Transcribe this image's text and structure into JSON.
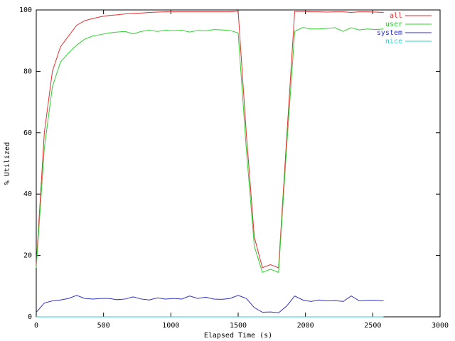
{
  "chart_data": {
    "type": "line",
    "xlabel": "Elapsed Time (s)",
    "ylabel": "% Utilized",
    "x": [
      0,
      60,
      120,
      180,
      240,
      300,
      360,
      420,
      480,
      540,
      600,
      660,
      720,
      780,
      840,
      900,
      960,
      1020,
      1080,
      1140,
      1200,
      1260,
      1320,
      1380,
      1440,
      1500,
      1560,
      1620,
      1680,
      1740,
      1800,
      1860,
      1920,
      1980,
      2040,
      2100,
      2160,
      2220,
      2280,
      2340,
      2400,
      2460,
      2520,
      2580
    ],
    "series": [
      {
        "name": "all",
        "color": "#e03030",
        "values": [
          17,
          60,
          80,
          88,
          91.5,
          95,
          96.5,
          97.2,
          97.8,
          98.2,
          98.4,
          98.7,
          98.9,
          99,
          99.2,
          99.3,
          99.4,
          99.4,
          99.4,
          99.4,
          99.4,
          99.4,
          99.4,
          99.4,
          99.4,
          99.6,
          60,
          26,
          16,
          17,
          16,
          58,
          99.5,
          99.5,
          99.4,
          99.4,
          99.3,
          99.4,
          99.4,
          99.2,
          99.4,
          99.4,
          99.3,
          99.2
        ]
      },
      {
        "name": "user",
        "color": "#30d030",
        "values": [
          16,
          55,
          75,
          83,
          86,
          88.5,
          90.5,
          91.5,
          92,
          92.5,
          92.8,
          93,
          92.2,
          93,
          93.4,
          93,
          93.4,
          93.2,
          93.4,
          92.8,
          93.3,
          93.2,
          93.6,
          93.5,
          93.3,
          92.5,
          55,
          23,
          14.5,
          15.5,
          14.5,
          55,
          93,
          94.3,
          93.8,
          93.8,
          94,
          94.2,
          93,
          94.2,
          93.5,
          93.8,
          93.6,
          93.8
        ]
      },
      {
        "name": "system",
        "color": "#3030c0",
        "values": [
          1.5,
          4.5,
          5.2,
          5.5,
          6,
          7,
          6,
          5.8,
          6,
          6,
          5.6,
          5.8,
          6.5,
          5.8,
          5.5,
          6.2,
          5.8,
          6,
          5.8,
          6.8,
          6,
          6.4,
          5.8,
          5.7,
          6,
          7,
          6,
          3,
          1.5,
          1.6,
          1.3,
          3.5,
          6.8,
          5.5,
          5,
          5.5,
          5.2,
          5.3,
          5,
          6.8,
          5.2,
          5.4,
          5.4,
          5.2
        ]
      },
      {
        "name": "nice",
        "color": "#30d0d0",
        "values": [
          0,
          0,
          0,
          0,
          0,
          0,
          0,
          0,
          0,
          0,
          0,
          0,
          0,
          0,
          0,
          0,
          0,
          0,
          0,
          0,
          0,
          0,
          0,
          0,
          0,
          0,
          0,
          0,
          0,
          0,
          0,
          0,
          0,
          0,
          0,
          0,
          0,
          0,
          0,
          0,
          0,
          0,
          0,
          0
        ]
      }
    ],
    "xlim": [
      0,
      3000
    ],
    "xticks": [
      0,
      500,
      1000,
      1500,
      2000,
      2500,
      3000
    ],
    "ylim": [
      0,
      100
    ],
    "yticks": [
      0,
      20,
      40,
      60,
      80,
      100
    ],
    "grid": false,
    "legend": "top-right"
  }
}
